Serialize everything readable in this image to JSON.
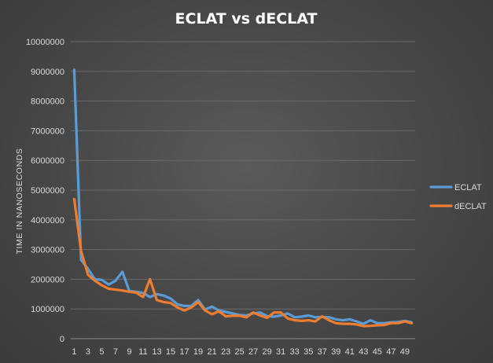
{
  "chart_data": {
    "type": "line",
    "title": "ECLAT vs dECLAT",
    "ylabel": "TIME IN NANOSECONDS",
    "xlabel": "",
    "x": [
      1,
      2,
      3,
      4,
      5,
      6,
      7,
      8,
      9,
      10,
      11,
      12,
      13,
      14,
      15,
      16,
      17,
      18,
      19,
      20,
      21,
      22,
      23,
      24,
      25,
      26,
      27,
      28,
      29,
      30,
      31,
      32,
      33,
      34,
      35,
      36,
      37,
      38,
      39,
      40,
      41,
      42,
      43,
      44,
      45,
      46,
      47,
      48,
      49,
      50
    ],
    "x_tick_labels": [
      "1",
      "3",
      "5",
      "7",
      "9",
      "11",
      "13",
      "15",
      "17",
      "19",
      "21",
      "23",
      "25",
      "27",
      "29",
      "31",
      "33",
      "35",
      "37",
      "39",
      "41",
      "43",
      "45",
      "47",
      "49"
    ],
    "y_tick_labels": [
      "0",
      "1000000",
      "2000000",
      "3000000",
      "4000000",
      "5000000",
      "6000000",
      "7000000",
      "8000000",
      "9000000",
      "10000000"
    ],
    "ylim": [
      0,
      10000000
    ],
    "grid": true,
    "legend_position": "right",
    "series": [
      {
        "name": "ECLAT",
        "color": "#5b9bd5",
        "values": [
          9050000,
          2650000,
          2350000,
          2000000,
          1980000,
          1820000,
          1950000,
          2250000,
          1600000,
          1580000,
          1540000,
          1400000,
          1500000,
          1450000,
          1350000,
          1150000,
          1100000,
          1100000,
          1300000,
          980000,
          1080000,
          950000,
          900000,
          850000,
          800000,
          780000,
          850000,
          880000,
          760000,
          740000,
          780000,
          850000,
          720000,
          740000,
          780000,
          720000,
          730000,
          720000,
          650000,
          620000,
          650000,
          580000,
          500000,
          620000,
          520000,
          520000,
          550000,
          560000,
          600000,
          550000
        ]
      },
      {
        "name": "dECLAT",
        "color": "#ed7d31",
        "values": [
          4700000,
          2950000,
          2150000,
          1950000,
          1800000,
          1680000,
          1650000,
          1620000,
          1580000,
          1550000,
          1400000,
          2000000,
          1300000,
          1230000,
          1200000,
          1050000,
          950000,
          1050000,
          1230000,
          950000,
          820000,
          920000,
          750000,
          770000,
          770000,
          720000,
          880000,
          780000,
          700000,
          880000,
          880000,
          680000,
          620000,
          600000,
          620000,
          580000,
          750000,
          620000,
          520000,
          500000,
          500000,
          480000,
          420000,
          430000,
          450000,
          460000,
          520000,
          520000,
          580000,
          520000
        ]
      }
    ]
  }
}
